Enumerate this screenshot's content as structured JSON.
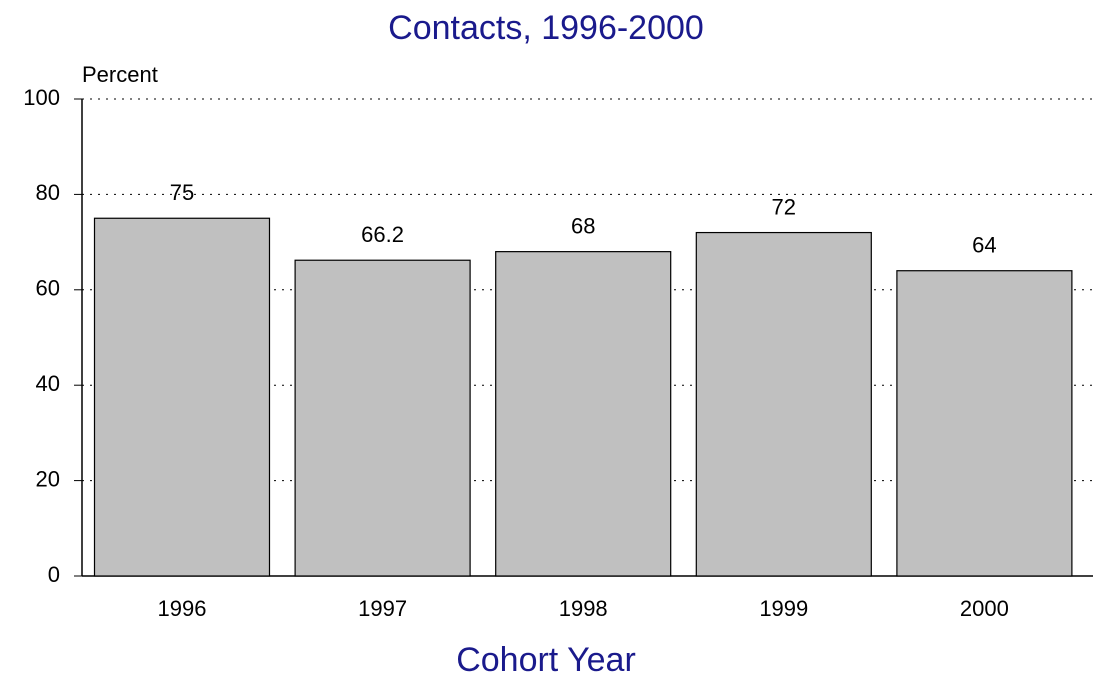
{
  "chart_data": {
    "type": "bar",
    "title": "Contacts, 1996-2000",
    "y_label": "Percent",
    "x_label": "Cohort Year",
    "categories": [
      "1996",
      "1997",
      "1998",
      "1999",
      "2000"
    ],
    "values": [
      75,
      66.2,
      68,
      72,
      64
    ],
    "color": "#c0c0c0",
    "ylim": [
      0,
      100
    ],
    "yticks": [
      0,
      20,
      40,
      60,
      80,
      100
    ],
    "grid": true
  }
}
